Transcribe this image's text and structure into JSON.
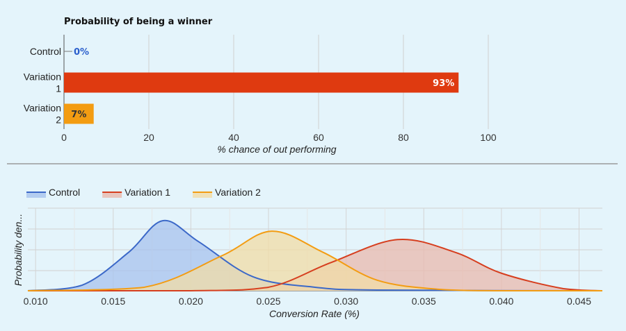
{
  "chart_data": [
    {
      "type": "bar",
      "orientation": "horizontal",
      "title": "Probability of being a winner",
      "xlabel": "% chance of out performing",
      "ylabel": "",
      "xlim": [
        0,
        100
      ],
      "xticks": [
        "0",
        "20",
        "40",
        "60",
        "80",
        "100"
      ],
      "grid": true,
      "categories": [
        {
          "lines": [
            "Control"
          ]
        },
        {
          "lines": [
            "Variation",
            "1"
          ]
        },
        {
          "lines": [
            "Variation",
            "2"
          ]
        }
      ],
      "values": [
        0,
        93,
        7
      ],
      "data_labels": [
        "0%",
        "93%",
        "7%"
      ],
      "colors": [
        "#2b5fcc",
        "#df3a10",
        "#f39c12"
      ],
      "label_colors": [
        "#2b5fcc",
        "#ffffff",
        "#333333"
      ]
    },
    {
      "type": "area",
      "title": "",
      "xlabel": "Conversion Rate (%)",
      "ylabel": "Probability den...",
      "xlim": [
        0.0095,
        0.0465
      ],
      "xticks": [
        "0.010",
        "0.015",
        "0.020",
        "0.025",
        "0.030",
        "0.035",
        "0.040",
        "0.045"
      ],
      "grid": true,
      "legend": "top-left",
      "series": [
        {
          "name": "Control",
          "color": "#3b68c8",
          "fill": "#a8c3ee",
          "x": [
            0.0095,
            0.013,
            0.016,
            0.0182,
            0.0205,
            0.024,
            0.028,
            0.032,
            0.0465
          ],
          "y": [
            0.0,
            0.08,
            0.55,
            1.0,
            0.7,
            0.2,
            0.05,
            0.01,
            0.0
          ]
        },
        {
          "name": "Variation 1",
          "color": "#d63e1e",
          "fill": "#e9b9ae",
          "x": [
            0.0095,
            0.02,
            0.025,
            0.029,
            0.0333,
            0.037,
            0.04,
            0.044,
            0.0465
          ],
          "y": [
            0.0,
            0.0,
            0.05,
            0.4,
            0.73,
            0.55,
            0.25,
            0.03,
            0.0
          ]
        },
        {
          "name": "Variation 2",
          "color": "#f39c12",
          "fill": "#f2dca5",
          "x": [
            0.0095,
            0.017,
            0.022,
            0.0252,
            0.0285,
            0.032,
            0.036,
            0.04,
            0.0465
          ],
          "y": [
            0.0,
            0.05,
            0.5,
            0.85,
            0.55,
            0.15,
            0.02,
            0.0,
            0.0
          ]
        }
      ]
    }
  ]
}
